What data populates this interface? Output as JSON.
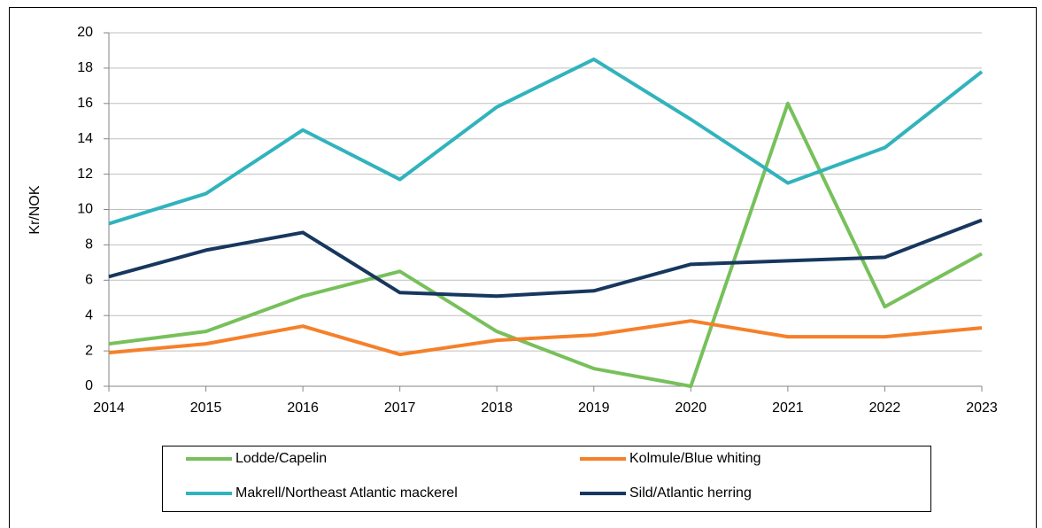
{
  "chart_data": {
    "type": "line",
    "y_label": "Kr/NOK",
    "categories": [
      "2014",
      "2015",
      "2016",
      "2017",
      "2018",
      "2019",
      "2020",
      "2021",
      "2022",
      "2023"
    ],
    "series": [
      {
        "name": "Lodde/Capelin",
        "color": "#77c05b",
        "values": [
          2.4,
          3.1,
          5.1,
          6.5,
          3.1,
          1.0,
          0,
          16.0,
          4.5,
          7.5
        ]
      },
      {
        "name": "Kolmule/Blue whiting",
        "color": "#f5802a",
        "values": [
          1.9,
          2.4,
          3.4,
          1.8,
          2.6,
          2.9,
          3.7,
          2.8,
          2.8,
          3.3
        ]
      },
      {
        "name": "Makrell/Northeast Atlantic mackerel",
        "color": "#31b3bd",
        "values": [
          9.2,
          10.9,
          14.5,
          11.7,
          15.8,
          18.5,
          15.1,
          11.5,
          13.5,
          17.8
        ]
      },
      {
        "name": "Sild/Atlantic herring",
        "color": "#17375e",
        "values": [
          6.2,
          7.7,
          8.7,
          5.3,
          5.1,
          5.4,
          6.9,
          7.1,
          7.3,
          9.4
        ]
      }
    ],
    "ylim": [
      0,
      20
    ],
    "yticks": [
      0,
      2,
      4,
      6,
      8,
      10,
      12,
      14,
      16,
      18,
      20
    ],
    "grid": true,
    "legend": "bottom"
  }
}
